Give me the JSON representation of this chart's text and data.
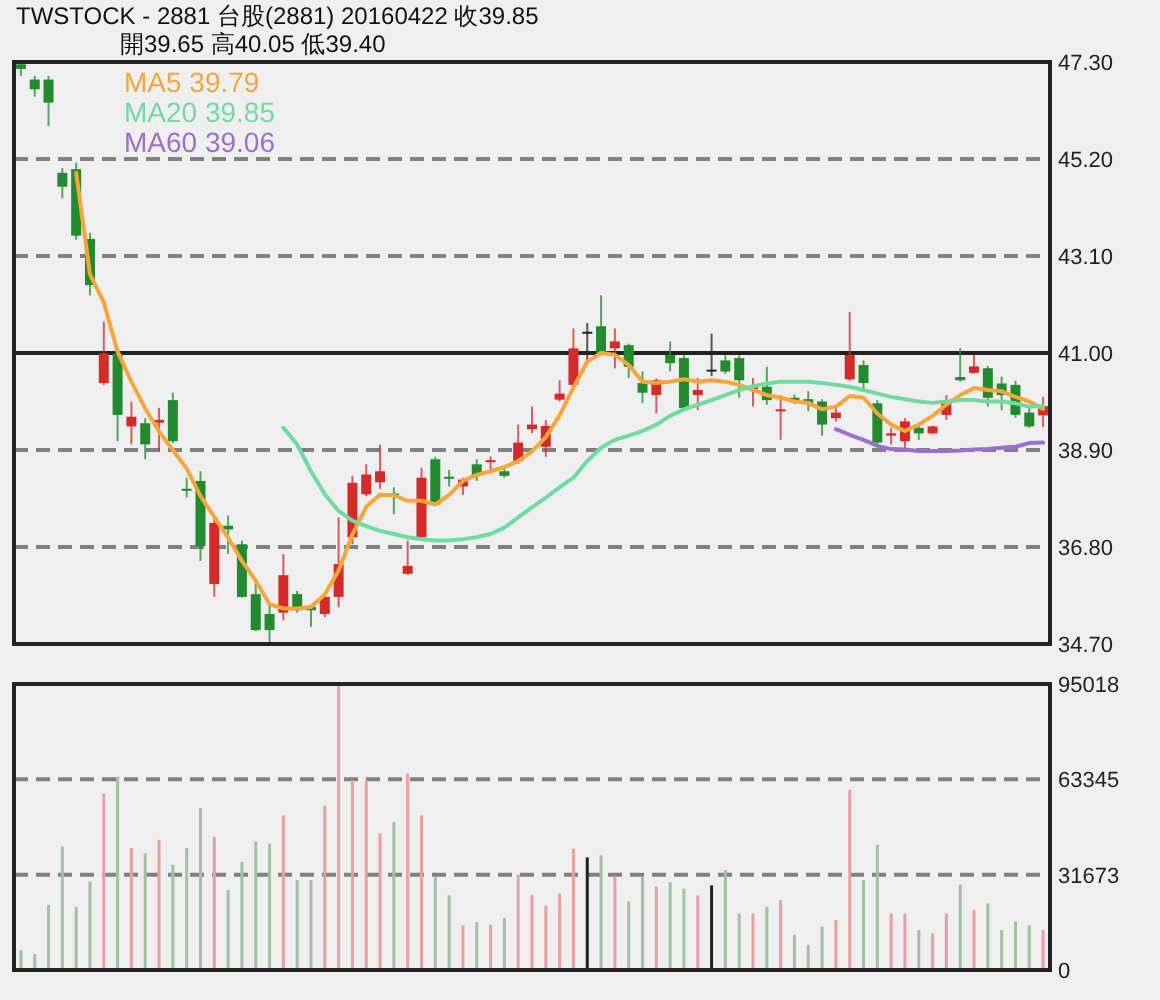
{
  "chart_data": [
    {
      "type": "candlestick",
      "title": "TWSTOCK - 2881  台股(2881) 20160422    收39.85",
      "subtitle": "開39.65    高40.05    低39.40",
      "categories": [
        null,
        null,
        null,
        null,
        null,
        null,
        null,
        null,
        null,
        null,
        null,
        null,
        null,
        null,
        null,
        null,
        null,
        null,
        null,
        null,
        null,
        null,
        null,
        null,
        null,
        null,
        null,
        null,
        null,
        null,
        null,
        null,
        null,
        null,
        null,
        null,
        null,
        null,
        null,
        null,
        null,
        null,
        null,
        null,
        null,
        null,
        null,
        null,
        null,
        null,
        null,
        null,
        null,
        null,
        null,
        null,
        null,
        null,
        null,
        null,
        null,
        null,
        null,
        null,
        null,
        null,
        null,
        null,
        null,
        null,
        null,
        null,
        null,
        null,
        null
      ],
      "ohlc": [
        [
          47.25,
          47.3,
          47.0,
          47.15
        ],
        [
          46.92,
          47.0,
          46.55,
          46.71
        ],
        [
          46.92,
          47.0,
          45.91,
          46.42
        ],
        [
          44.9,
          45.0,
          44.35,
          44.6
        ],
        [
          44.98,
          45.12,
          43.45,
          43.54
        ],
        [
          43.47,
          43.6,
          42.25,
          42.47
        ],
        [
          40.35,
          41.68,
          40.3,
          40.99
        ],
        [
          40.99,
          41.1,
          39.09,
          39.66
        ],
        [
          39.41,
          39.95,
          39.02,
          39.62
        ],
        [
          39.48,
          39.59,
          38.7,
          39.02
        ],
        [
          39.49,
          39.81,
          38.87,
          39.55
        ],
        [
          39.98,
          40.14,
          39.05,
          39.09
        ],
        [
          38.06,
          38.3,
          37.87,
          38.02
        ],
        [
          38.23,
          38.44,
          36.5,
          36.82
        ],
        [
          36.0,
          37.44,
          35.72,
          37.32
        ],
        [
          37.26,
          37.48,
          36.65,
          37.18
        ],
        [
          36.86,
          36.94,
          35.7,
          35.72
        ],
        [
          35.78,
          36.07,
          34.98,
          35.0
        ],
        [
          35.35,
          35.57,
          34.71,
          35.0
        ],
        [
          35.38,
          36.65,
          35.21,
          36.19
        ],
        [
          35.78,
          35.85,
          35.38,
          35.43
        ],
        [
          35.5,
          35.55,
          35.07,
          35.43
        ],
        [
          35.35,
          35.79,
          35.28,
          35.72
        ],
        [
          35.72,
          37.44,
          35.5,
          36.43
        ],
        [
          37.01,
          38.34,
          36.86,
          38.19
        ],
        [
          37.94,
          38.59,
          37.9,
          38.37
        ],
        [
          38.2,
          39.02,
          38.06,
          38.44
        ],
        [
          37.96,
          38.09,
          37.51,
          37.92
        ],
        [
          36.22,
          36.94,
          36.2,
          36.39
        ],
        [
          37.01,
          38.52,
          36.95,
          38.3
        ],
        [
          38.7,
          38.75,
          37.7,
          37.72
        ],
        [
          38.32,
          38.47,
          38.11,
          38.28
        ],
        [
          38.11,
          38.3,
          37.93,
          38.26
        ],
        [
          38.59,
          38.7,
          38.23,
          38.34
        ],
        [
          38.64,
          38.76,
          38.44,
          38.68
        ],
        [
          38.44,
          38.55,
          38.3,
          38.34
        ],
        [
          38.66,
          39.45,
          38.6,
          39.06
        ],
        [
          39.35,
          39.84,
          39.26,
          39.45
        ],
        [
          38.97,
          39.55,
          38.75,
          39.42
        ],
        [
          39.99,
          40.41,
          39.95,
          40.12
        ],
        [
          40.31,
          41.53,
          40.25,
          41.1
        ],
        [
          41.46,
          41.65,
          40.81,
          41.46
        ],
        [
          41.58,
          42.25,
          40.95,
          41.0
        ],
        [
          41.1,
          41.53,
          40.67,
          41.25
        ],
        [
          41.17,
          41.2,
          40.46,
          40.7
        ],
        [
          40.35,
          40.6,
          39.92,
          40.14
        ],
        [
          40.09,
          40.45,
          39.69,
          40.41
        ],
        [
          40.96,
          41.25,
          40.6,
          40.78
        ],
        [
          40.89,
          40.95,
          39.81,
          39.81
        ],
        [
          40.09,
          40.46,
          39.76,
          40.2
        ],
        [
          40.64,
          41.42,
          40.5,
          40.64
        ],
        [
          40.84,
          40.95,
          40.55,
          40.6
        ],
        [
          40.89,
          40.95,
          40.03,
          40.41
        ],
        [
          40.22,
          40.46,
          39.84,
          40.26
        ],
        [
          40.27,
          40.7,
          39.88,
          39.98
        ],
        [
          39.74,
          40.09,
          39.12,
          39.78
        ],
        [
          40.03,
          40.1,
          39.9,
          39.95
        ],
        [
          40.0,
          40.17,
          39.74,
          39.92
        ],
        [
          39.95,
          40.0,
          39.21,
          39.45
        ],
        [
          39.59,
          39.8,
          39.52,
          39.71
        ],
        [
          40.43,
          41.89,
          40.4,
          40.96
        ],
        [
          40.74,
          40.84,
          40.21,
          40.35
        ],
        [
          39.91,
          39.98,
          39.0,
          39.06
        ],
        [
          39.21,
          39.38,
          39.02,
          39.26
        ],
        [
          39.09,
          39.59,
          38.94,
          39.52
        ],
        [
          39.38,
          39.43,
          39.12,
          39.26
        ],
        [
          39.26,
          39.43,
          39.24,
          39.41
        ],
        [
          39.66,
          40.09,
          39.55,
          39.92
        ],
        [
          40.48,
          41.1,
          40.38,
          40.41
        ],
        [
          40.57,
          40.96,
          40.55,
          40.71
        ],
        [
          40.67,
          40.72,
          39.84,
          40.03
        ],
        [
          40.34,
          40.49,
          39.76,
          40.09
        ],
        [
          40.31,
          40.4,
          39.6,
          39.66
        ],
        [
          39.71,
          39.81,
          39.38,
          39.41
        ],
        [
          39.65,
          40.05,
          39.4,
          39.85
        ]
      ],
      "colors": [
        "#238b2f",
        "#238b2f",
        "#238b2f",
        "#238b2f",
        "#238b2f",
        "#238b2f",
        "#d42a2a",
        "#238b2f",
        "#d42a2a",
        "#238b2f",
        "#d42a2a",
        "#238b2f",
        "#238b2f",
        "#238b2f",
        "#d42a2a",
        "#238b2f",
        "#238b2f",
        "#238b2f",
        "#238b2f",
        "#d42a2a",
        "#238b2f",
        "#238b2f",
        "#d42a2a",
        "#d42a2a",
        "#d42a2a",
        "#d42a2a",
        "#d42a2a",
        "#238b2f",
        "#d42a2a",
        "#d42a2a",
        "#238b2f",
        "#238b2f",
        "#d42a2a",
        "#238b2f",
        "#d42a2a",
        "#238b2f",
        "#d42a2a",
        "#d42a2a",
        "#d42a2a",
        "#d42a2a",
        "#d42a2a",
        "#222222",
        "#238b2f",
        "#d42a2a",
        "#238b2f",
        "#238b2f",
        "#d42a2a",
        "#238b2f",
        "#238b2f",
        "#d42a2a",
        "#222222",
        "#238b2f",
        "#238b2f",
        "#d42a2a",
        "#238b2f",
        "#d42a2a",
        "#238b2f",
        "#238b2f",
        "#238b2f",
        "#d42a2a",
        "#d42a2a",
        "#238b2f",
        "#238b2f",
        "#d42a2a",
        "#d42a2a",
        "#238b2f",
        "#d42a2a",
        "#d42a2a",
        "#238b2f",
        "#d42a2a",
        "#238b2f",
        "#238b2f",
        "#238b2f",
        "#238b2f",
        "#d42a2a"
      ],
      "series": [
        {
          "name": "MA5 39.79",
          "type": "line",
          "color": "#f5a53a",
          "values": [
            null,
            null,
            null,
            null,
            44.9,
            42.7,
            42.1,
            41.03,
            40.38,
            39.8,
            39.3,
            38.9,
            38.5,
            37.9,
            37.45,
            37.0,
            36.5,
            36.07,
            35.56,
            35.47,
            35.47,
            35.5,
            35.77,
            36.29,
            37.07,
            37.67,
            37.93,
            37.92,
            37.8,
            37.8,
            37.72,
            37.93,
            38.23,
            38.36,
            38.44,
            38.53,
            38.66,
            38.87,
            39.18,
            39.65,
            40.25,
            40.81,
            41.0,
            40.96,
            40.74,
            40.38,
            40.35,
            40.38,
            40.43,
            40.38,
            40.41,
            40.38,
            40.31,
            40.2,
            40.09,
            40.03,
            39.95,
            39.92,
            39.78,
            39.84,
            40.07,
            40.03,
            39.69,
            39.45,
            39.31,
            39.45,
            39.64,
            39.88,
            40.09,
            40.24,
            40.2,
            40.17,
            40.05,
            39.95,
            39.79
          ]
        },
        {
          "name": "MA20 39.85",
          "type": "line",
          "color": "#6fdc9e",
          "values": [
            null,
            null,
            null,
            null,
            null,
            null,
            null,
            null,
            null,
            null,
            null,
            null,
            null,
            null,
            null,
            null,
            null,
            null,
            null,
            39.38,
            39.02,
            38.44,
            37.94,
            37.58,
            37.37,
            37.25,
            37.15,
            37.08,
            37.01,
            36.97,
            36.94,
            36.94,
            36.97,
            37.01,
            37.08,
            37.22,
            37.44,
            37.66,
            37.87,
            38.09,
            38.3,
            38.66,
            38.95,
            39.12,
            39.21,
            39.31,
            39.45,
            39.64,
            39.78,
            39.88,
            39.98,
            40.09,
            40.2,
            40.28,
            40.34,
            40.38,
            40.38,
            40.38,
            40.35,
            40.31,
            40.27,
            40.2,
            40.12,
            40.05,
            40.0,
            39.95,
            39.92,
            39.95,
            39.98,
            39.98,
            39.95,
            39.95,
            39.91,
            39.84,
            39.85
          ]
        },
        {
          "name": "MA60 39.06",
          "type": "line",
          "color": "#9a6fd0",
          "values": [
            null,
            null,
            null,
            null,
            null,
            null,
            null,
            null,
            null,
            null,
            null,
            null,
            null,
            null,
            null,
            null,
            null,
            null,
            null,
            null,
            null,
            null,
            null,
            null,
            null,
            null,
            null,
            null,
            null,
            null,
            null,
            null,
            null,
            null,
            null,
            null,
            null,
            null,
            null,
            null,
            null,
            null,
            null,
            null,
            null,
            null,
            null,
            null,
            null,
            null,
            null,
            null,
            null,
            null,
            null,
            null,
            null,
            null,
            null,
            39.35,
            39.23,
            39.12,
            38.99,
            38.92,
            38.91,
            38.88,
            38.88,
            38.88,
            38.89,
            38.91,
            38.92,
            38.95,
            38.97,
            39.05,
            39.06
          ]
        }
      ],
      "ylim": [
        34.7,
        47.3
      ],
      "yticks": [
        {
          "value": 47.3,
          "label": "47.30"
        },
        {
          "value": 45.2,
          "label": "45.20"
        },
        {
          "value": 43.1,
          "label": "43.10"
        },
        {
          "value": 41.0,
          "label": "41.00"
        },
        {
          "value": 38.9,
          "label": "38.90"
        },
        {
          "value": 36.8,
          "label": "36.80"
        },
        {
          "value": 34.7,
          "label": "34.70"
        }
      ],
      "ref_lines": [
        {
          "axis": "y",
          "value": 41.0,
          "color": "#222222"
        }
      ],
      "grid": "y",
      "legend": "top left",
      "tick_labels": "y"
    },
    {
      "type": "bar",
      "categories": [
        null,
        null,
        null,
        null,
        null,
        null,
        null,
        null,
        null,
        null,
        null,
        null,
        null,
        null,
        null,
        null,
        null,
        null,
        null,
        null,
        null,
        null,
        null,
        null,
        null,
        null,
        null,
        null,
        null,
        null,
        null,
        null,
        null,
        null,
        null,
        null,
        null,
        null,
        null,
        null,
        null,
        null,
        null,
        null,
        null,
        null,
        null,
        null,
        null,
        null,
        null,
        null,
        null,
        null,
        null,
        null,
        null,
        null,
        null,
        null,
        null,
        null,
        null,
        null,
        null,
        null,
        null,
        null,
        null,
        null,
        null,
        null,
        null,
        null,
        null
      ],
      "values": [
        6600,
        5300,
        21700,
        41000,
        21000,
        29400,
        58600,
        64200,
        40500,
        38700,
        43200,
        35000,
        40500,
        53800,
        44300,
        26600,
        35900,
        42700,
        42000,
        51300,
        29900,
        29900,
        54600,
        94800,
        63100,
        63100,
        45400,
        49100,
        65300,
        51300,
        31000,
        24800,
        14800,
        15900,
        15100,
        17300,
        31700,
        25000,
        21400,
        25400,
        40300,
        37400,
        38100,
        31000,
        22800,
        31000,
        27700,
        29200,
        27000,
        24800,
        28100,
        33200,
        18800,
        18800,
        21000,
        23200,
        11700,
        8400,
        14400,
        16600,
        59800,
        29900,
        41600,
        18800,
        18800,
        13300,
        12200,
        18800,
        28400,
        19900,
        22100,
        13300,
        16100,
        14800,
        13300
      ],
      "colors": [
        "#9fc29f",
        "#9fc29f",
        "#9fc29f",
        "#9fc29f",
        "#9fc29f",
        "#9fc29f",
        "#eba0a0",
        "#9fc29f",
        "#eba0a0",
        "#9fc29f",
        "#eba0a0",
        "#9fc29f",
        "#9fc29f",
        "#9fc29f",
        "#eba0a0",
        "#9fc29f",
        "#9fc29f",
        "#9fc29f",
        "#9fc29f",
        "#eba0a0",
        "#9fc29f",
        "#9fc29f",
        "#eba0a0",
        "#eba0a0",
        "#eba0a0",
        "#eba0a0",
        "#eba0a0",
        "#9fc29f",
        "#eba0a0",
        "#eba0a0",
        "#9fc29f",
        "#9fc29f",
        "#eba0a0",
        "#9fc29f",
        "#eba0a0",
        "#9fc29f",
        "#eba0a0",
        "#eba0a0",
        "#eba0a0",
        "#eba0a0",
        "#eba0a0",
        "#222222",
        "#9fc29f",
        "#eba0a0",
        "#9fc29f",
        "#9fc29f",
        "#eba0a0",
        "#9fc29f",
        "#9fc29f",
        "#eba0a0",
        "#222222",
        "#9fc29f",
        "#9fc29f",
        "#eba0a0",
        "#9fc29f",
        "#eba0a0",
        "#9fc29f",
        "#9fc29f",
        "#9fc29f",
        "#eba0a0",
        "#eba0a0",
        "#9fc29f",
        "#9fc29f",
        "#eba0a0",
        "#eba0a0",
        "#9fc29f",
        "#eba0a0",
        "#eba0a0",
        "#9fc29f",
        "#eba0a0",
        "#9fc29f",
        "#9fc29f",
        "#9fc29f",
        "#9fc29f",
        "#eba0a0"
      ],
      "ylim": [
        0,
        95018
      ],
      "yticks": [
        0,
        31673,
        63345,
        95018
      ],
      "grid": "y",
      "tick_labels": "y"
    }
  ]
}
